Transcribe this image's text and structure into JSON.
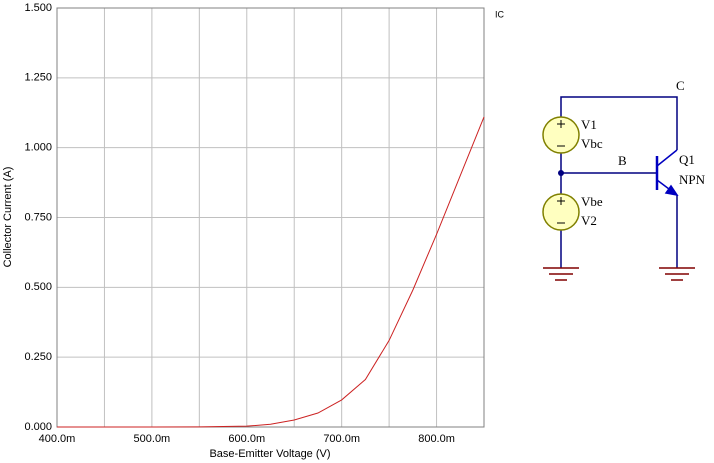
{
  "chart_data": {
    "type": "line",
    "xlabel": "Base-Emitter Voltage (V)",
    "ylabel": "Collector Current (A)",
    "x": [
      0.4,
      0.45,
      0.5,
      0.55,
      0.6,
      0.625,
      0.65,
      0.675,
      0.7,
      0.725,
      0.75,
      0.775,
      0.8,
      0.825,
      0.85
    ],
    "series": [
      {
        "name": "IC",
        "color": "#cc2222",
        "values": [
          0,
          0,
          0,
          0.0005,
          0.003,
          0.01,
          0.025,
          0.05,
          0.097,
          0.17,
          0.31,
          0.49,
          0.69,
          0.9,
          1.11
        ]
      }
    ],
    "xlim": [
      0.4,
      0.85
    ],
    "xticks": [
      {
        "value": 0.4,
        "label": "400.0m"
      },
      {
        "value": 0.5,
        "label": "500.0m"
      },
      {
        "value": 0.6,
        "label": "600.0m"
      },
      {
        "value": 0.7,
        "label": "700.0m"
      },
      {
        "value": 0.8,
        "label": "800.0m"
      }
    ],
    "x_minor_grid": [
      0.45,
      0.55,
      0.65,
      0.75
    ],
    "ylim": [
      0,
      1.5
    ],
    "yticks": [
      {
        "value": 0,
        "label": "0.000"
      },
      {
        "value": 0.25,
        "label": "0.250"
      },
      {
        "value": 0.5,
        "label": "0.500"
      },
      {
        "value": 0.75,
        "label": "0.750"
      },
      {
        "value": 1,
        "label": "1.000"
      },
      {
        "value": 1.25,
        "label": "1.250"
      },
      {
        "value": 1.5,
        "label": "1.500"
      }
    ],
    "grid": true
  },
  "schematic": {
    "collector": "C",
    "base": "B",
    "transistor": "Q1",
    "transistor_type": "NPN",
    "source1": "V1",
    "source1_value": "Vbc",
    "source2_value": "Vbe",
    "source2": "V2"
  }
}
